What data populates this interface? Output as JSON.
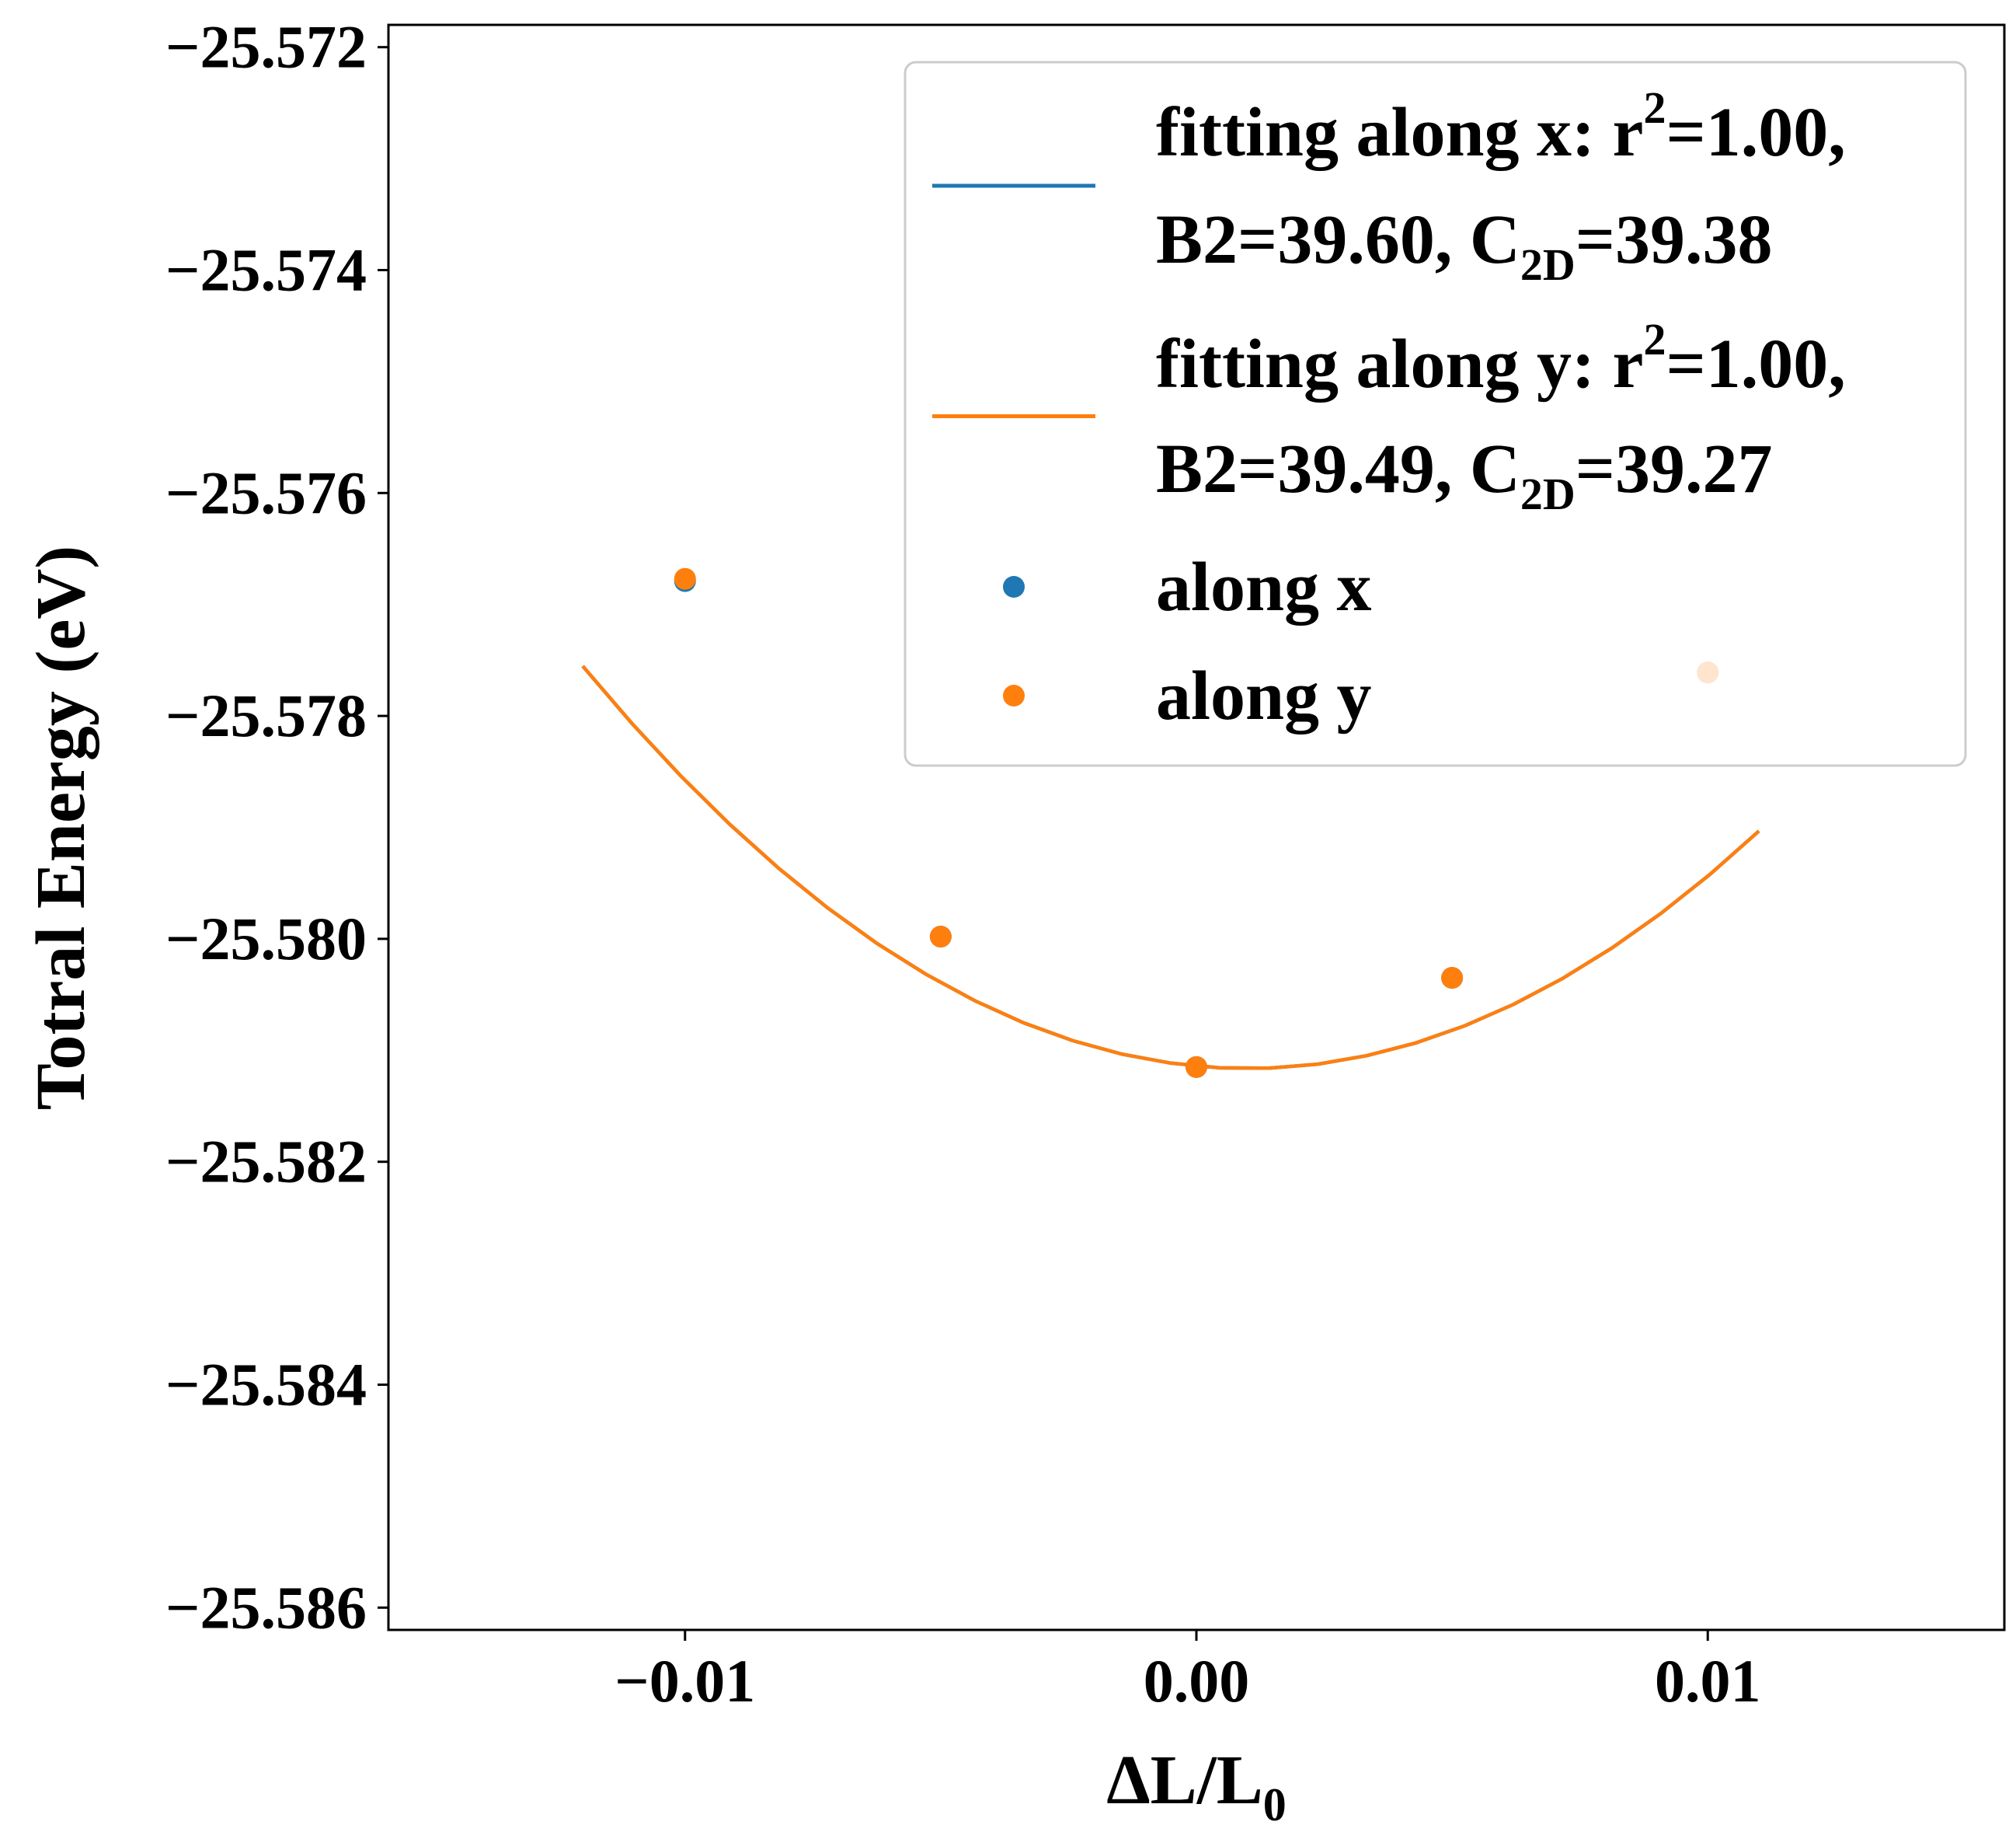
{
  "chart_data": {
    "type": "line",
    "xlabel": "ΔL/L",
    "xlabel_sub": "0",
    "ylabel": "Totral Energy (eV)",
    "xlim": [
      -0.0158,
      0.0158
    ],
    "ylim": [
      -25.5862,
      -25.5718
    ],
    "x_ticks": [
      -0.01,
      0.0,
      0.01
    ],
    "x_tick_labels": [
      "−0.01",
      "0.00",
      "0.01"
    ],
    "y_ticks": [
      -25.572,
      -25.574,
      -25.576,
      -25.578,
      -25.58,
      -25.582,
      -25.584,
      -25.586
    ],
    "y_tick_labels": [
      "−25.572",
      "−25.574",
      "−25.576",
      "−25.578",
      "−25.580",
      "−25.582",
      "−25.584",
      "−25.586"
    ],
    "grid": false,
    "legend_position": "top-right",
    "series": [
      {
        "name": "fitting along x",
        "kind": "line",
        "color": "#1f77b4",
        "fit": {
          "a": 21.34,
          "b": -0.043,
          "c": -25.581142
        },
        "x_range": [
          -0.012,
          0.011
        ],
        "legend_parts": [
          "fitting along x: r",
          "2",
          "=1.00,",
          "B2=39.60, C",
          "2D",
          "=39.38"
        ]
      },
      {
        "name": "fitting along y",
        "kind": "line",
        "color": "#ff7f0e",
        "fit": {
          "a": 21.34,
          "b": -0.043,
          "c": -25.581142
        },
        "x_range": [
          -0.012,
          0.011
        ],
        "legend_parts": [
          "fitting along y: r",
          "2",
          "=1.00,",
          "B2=39.49, C",
          "2D",
          "=39.27"
        ]
      },
      {
        "name": "along x",
        "kind": "scatter",
        "color": "#1f77b4",
        "x": [
          -0.01,
          -0.005,
          0.0,
          0.005,
          0.01
        ],
        "y": [
          -25.57679,
          -25.57998,
          -25.58115,
          -25.58035,
          -25.57761
        ]
      },
      {
        "name": "along y",
        "kind": "scatter",
        "color": "#ff7f0e",
        "x": [
          -0.01,
          -0.005,
          0.0,
          0.005,
          0.01
        ],
        "y": [
          -25.57677,
          -25.57998,
          -25.58115,
          -25.58035,
          -25.57761
        ]
      }
    ]
  }
}
